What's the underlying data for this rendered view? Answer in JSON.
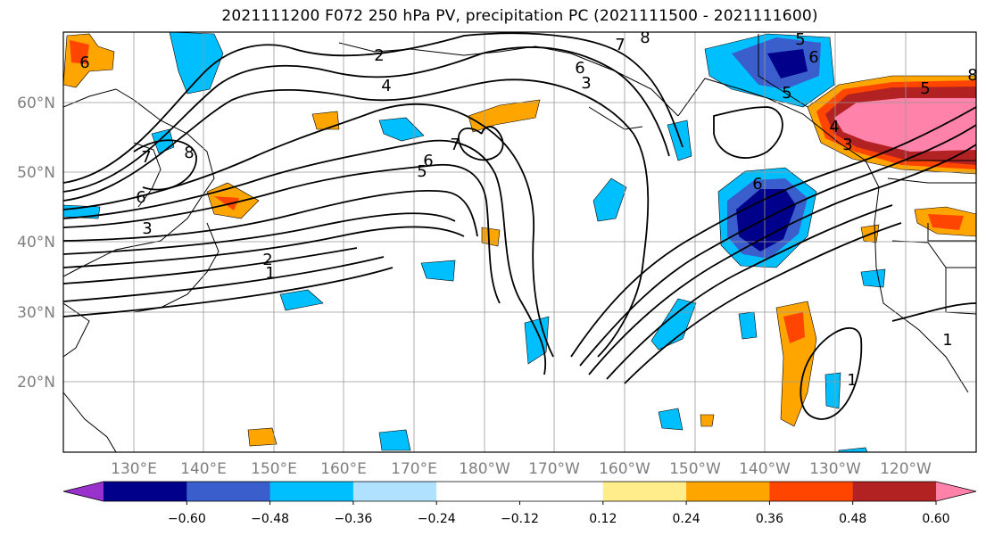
{
  "title": "2021111200 F072 250 hPa PV, precipitation PC (2021111500 - 2021111600)",
  "map": {
    "lat_labels": [
      "60°N",
      "50°N",
      "40°N",
      "30°N",
      "20°N"
    ],
    "lon_labels": [
      "130°E",
      "140°E",
      "150°E",
      "160°E",
      "170°E",
      "180°W",
      "170°W",
      "160°W",
      "150°W",
      "140°W",
      "130°W",
      "120°W"
    ],
    "contour_labels": [
      "2",
      "4",
      "6",
      "8",
      "7",
      "3",
      "6",
      "5",
      "8",
      "6",
      "5",
      "6",
      "7",
      "6",
      "3",
      "7",
      "5",
      "6",
      "1",
      "2",
      "3",
      "4",
      "1",
      "1",
      "5",
      "8"
    ],
    "label_color": "#7f7f7f",
    "fields": "250 hPa PV contours; precipitation PC shaded"
  },
  "colorbar": {
    "colors": [
      "#9932cc",
      "#00008b",
      "#3a5fcd",
      "#00bfff",
      "#b0e2ff",
      "#ffffff",
      "#ffffff",
      "#ffec8b",
      "#ffa500",
      "#ff4500",
      "#b22222",
      "#ff82ab"
    ],
    "tick_labels": [
      "−0.60",
      "−0.48",
      "−0.36",
      "−0.24",
      "−0.12",
      "0.12",
      "0.24",
      "0.36",
      "0.48",
      "0.60"
    ]
  }
}
